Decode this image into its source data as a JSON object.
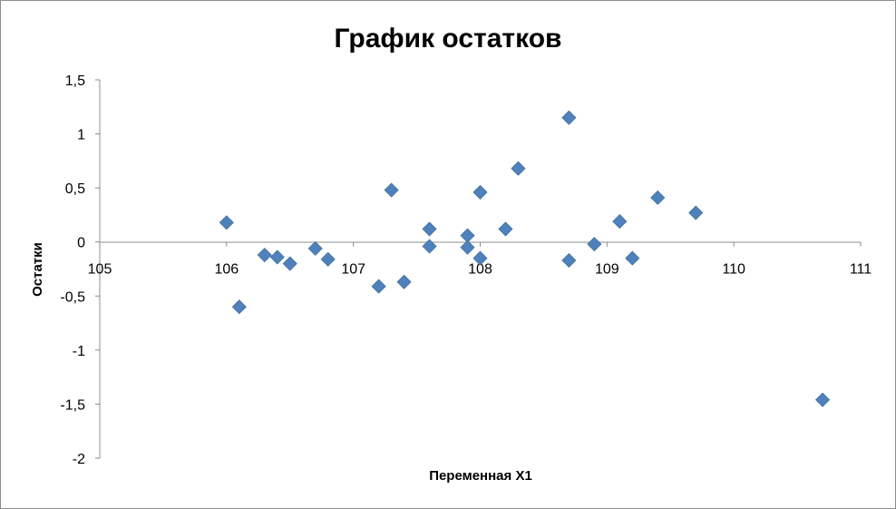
{
  "chart_data": {
    "type": "scatter",
    "title": "График остатков",
    "xlabel": "Переменная X1",
    "ylabel": "Остатки",
    "xlim": [
      105,
      111
    ],
    "ylim": [
      -2,
      1.5
    ],
    "x_ticks": [
      "105",
      "106",
      "107",
      "108",
      "109",
      "110",
      "111"
    ],
    "y_ticks": [
      "1,5",
      "1",
      "0,5",
      "0",
      "-0,5",
      "-1",
      "-1,5",
      "-2"
    ],
    "marker_color": "#4f81bd",
    "marker": "diamond",
    "grid": false,
    "series": [
      {
        "points": [
          [
            106.0,
            0.18
          ],
          [
            106.1,
            -0.6
          ],
          [
            106.3,
            -0.12
          ],
          [
            106.4,
            -0.14
          ],
          [
            106.5,
            -0.2
          ],
          [
            106.7,
            -0.06
          ],
          [
            106.8,
            -0.16
          ],
          [
            107.2,
            -0.41
          ],
          [
            107.3,
            0.48
          ],
          [
            107.4,
            -0.37
          ],
          [
            107.6,
            0.12
          ],
          [
            107.6,
            -0.04
          ],
          [
            107.9,
            0.06
          ],
          [
            107.9,
            -0.05
          ],
          [
            108.0,
            0.46
          ],
          [
            108.0,
            -0.15
          ],
          [
            108.2,
            0.12
          ],
          [
            108.3,
            0.68
          ],
          [
            108.7,
            1.15
          ],
          [
            108.7,
            -0.17
          ],
          [
            108.9,
            -0.02
          ],
          [
            109.1,
            0.19
          ],
          [
            109.2,
            -0.15
          ],
          [
            109.4,
            0.41
          ],
          [
            109.7,
            0.27
          ],
          [
            110.7,
            -1.46
          ]
        ]
      }
    ]
  }
}
